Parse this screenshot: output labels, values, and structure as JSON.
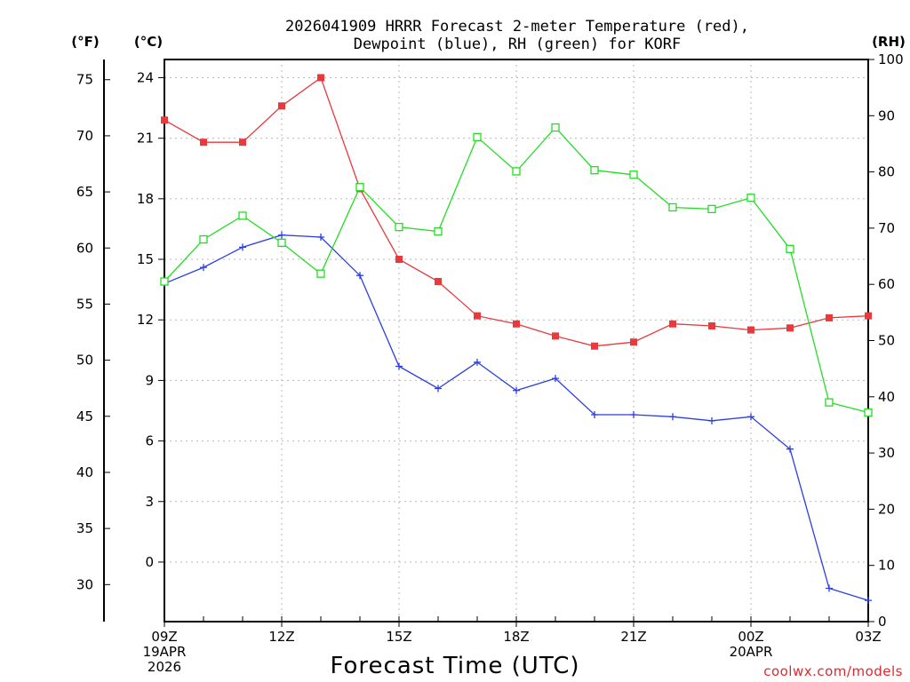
{
  "chart_data": {
    "type": "line",
    "title_line1": "2026041909 HRRR Forecast 2-meter Temperature (red),",
    "title_line2": "Dewpoint (blue), RH (green) for KORF",
    "xlabel": "Forecast Time (UTC)",
    "credit": "coolwx.com/models",
    "units": {
      "fahrenheit": "(°F)",
      "celsius": "(°C)",
      "rh": "(RH)"
    },
    "x_hours": [
      0,
      1,
      2,
      3,
      4,
      5,
      6,
      7,
      8,
      9,
      10,
      11,
      12,
      13,
      14,
      15,
      16,
      17,
      18
    ],
    "x_ticks": [
      {
        "hour": 0,
        "lines": [
          "09Z",
          "19APR",
          "2026"
        ]
      },
      {
        "hour": 3,
        "lines": [
          "12Z"
        ]
      },
      {
        "hour": 6,
        "lines": [
          "15Z"
        ]
      },
      {
        "hour": 9,
        "lines": [
          "18Z"
        ]
      },
      {
        "hour": 12,
        "lines": [
          "21Z"
        ]
      },
      {
        "hour": 15,
        "lines": [
          "00Z",
          "20APR"
        ]
      },
      {
        "hour": 18,
        "lines": [
          "03Z"
        ]
      }
    ],
    "celsius_axis": {
      "range": [
        -2.95,
        24.9
      ],
      "ticks": [
        0,
        3,
        6,
        9,
        12,
        15,
        18,
        21,
        24
      ]
    },
    "fahrenheit_axis": {
      "range": [
        26.7,
        76.8
      ],
      "ticks": [
        30,
        35,
        40,
        45,
        50,
        55,
        60,
        65,
        70,
        75
      ]
    },
    "rh_axis": {
      "range": [
        0,
        100
      ],
      "ticks": [
        0,
        10,
        20,
        30,
        40,
        50,
        60,
        70,
        80,
        90,
        100
      ]
    },
    "series": [
      {
        "name": "Temperature",
        "color": "#e8393d",
        "marker": "filled-square",
        "axis": "celsius",
        "values": [
          21.9,
          20.8,
          20.8,
          22.6,
          24.0,
          18.5,
          15.0,
          13.9,
          12.2,
          11.8,
          11.2,
          10.7,
          10.9,
          11.8,
          11.7,
          11.5,
          11.6,
          12.1,
          12.2
        ]
      },
      {
        "name": "Dewpoint",
        "color": "#2b3fe0",
        "marker": "plus",
        "axis": "celsius",
        "values": [
          13.8,
          14.6,
          15.6,
          16.2,
          16.1,
          14.2,
          9.7,
          8.6,
          9.9,
          8.5,
          9.1,
          7.3,
          7.3,
          7.2,
          7.0,
          7.2,
          5.6,
          -1.3,
          -1.9
        ]
      },
      {
        "name": "RH",
        "color": "#22dd22",
        "marker": "open-square",
        "axis": "rh",
        "values": [
          60.5,
          68.0,
          72.2,
          67.4,
          61.9,
          77.3,
          70.2,
          69.4,
          86.2,
          80.1,
          87.9,
          80.3,
          79.5,
          73.7,
          73.4,
          75.4,
          66.3,
          39.0,
          37.2
        ]
      }
    ]
  }
}
